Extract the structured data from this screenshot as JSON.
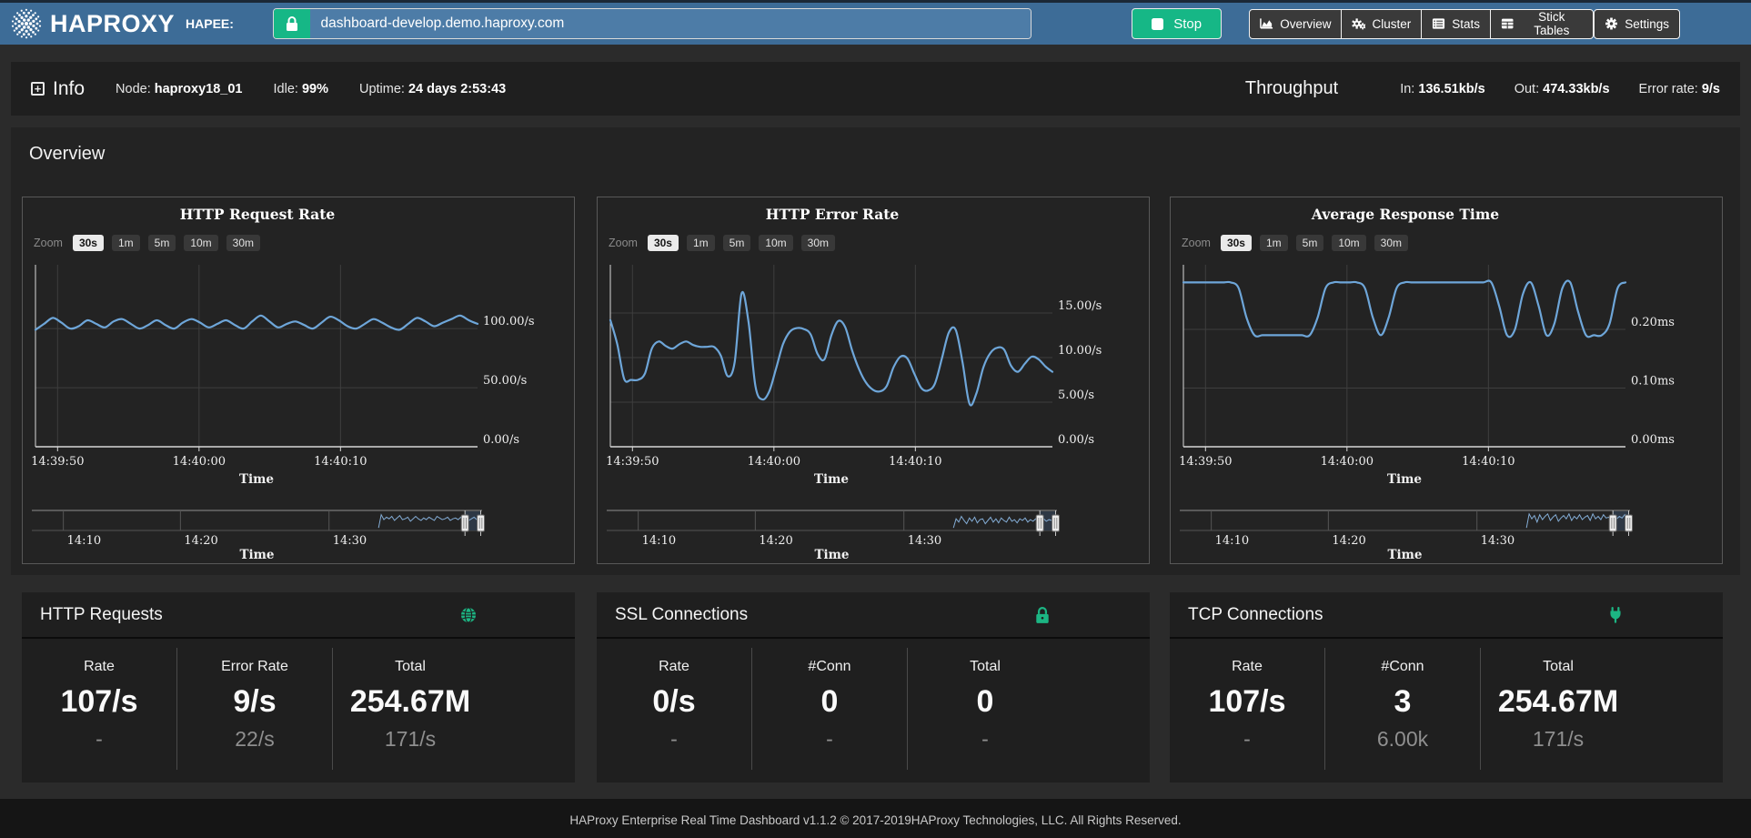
{
  "header": {
    "brand": "HAPROXY",
    "hapee_label": "HAPEE:",
    "url_value": "dashboard-develop.demo.haproxy.com",
    "lock_icon": "lock-icon",
    "stop_label": "Stop",
    "nav": [
      {
        "label": "Overview",
        "icon": "area-chart-icon"
      },
      {
        "label": "Cluster",
        "icon": "gears-icon"
      },
      {
        "label": "Stats",
        "icon": "list-icon"
      },
      {
        "label": "Stick Tables",
        "icon": "table-icon"
      }
    ],
    "settings_label": "Settings",
    "settings_icon": "gear-icon"
  },
  "info_bar": {
    "info_label": "Info",
    "items": [
      {
        "label": "Node:",
        "value": "haproxy18_01"
      },
      {
        "label": "Idle:",
        "value": "99%"
      },
      {
        "label": "Uptime:",
        "value": "24 days 2:53:43"
      }
    ],
    "throughput": {
      "title": "Throughput",
      "items": [
        {
          "label": "In:",
          "value": "136.51kb/s"
        },
        {
          "label": "Out:",
          "value": "474.33kb/s"
        },
        {
          "label": "Error rate:",
          "value": "9/s"
        }
      ]
    }
  },
  "overview": {
    "title": "Overview",
    "zoom_label": "Zoom",
    "zoom_options": [
      "30s",
      "1m",
      "5m",
      "10m",
      "30m"
    ],
    "active_zoom": "30s"
  },
  "chart_data": [
    {
      "type": "line",
      "title": "HTTP Request Rate",
      "xlabel": "Time",
      "line_color": "#6ea6d9",
      "ylim": [
        0,
        154
      ],
      "yticks": [
        {
          "v": 100,
          "label": "100.00/s"
        },
        {
          "v": 50,
          "label": "50.00/s"
        },
        {
          "v": 0,
          "label": "0.00/s"
        }
      ],
      "xticks": [
        {
          "p": 0.05,
          "label": "14:39:50"
        },
        {
          "p": 0.37,
          "label": "14:40:00"
        },
        {
          "p": 0.69,
          "label": "14:40:10"
        }
      ],
      "values": [
        99,
        104,
        109,
        105,
        100,
        102,
        107,
        104,
        101,
        106,
        108,
        104,
        100,
        103,
        107,
        103,
        100,
        105,
        108,
        105,
        101,
        104,
        107,
        103,
        100,
        106,
        111,
        106,
        101,
        104,
        106,
        103,
        100,
        105,
        110,
        107,
        102,
        100,
        104,
        108,
        105,
        101,
        99,
        104,
        109,
        106,
        102,
        105,
        108,
        111,
        107,
        104
      ],
      "range_selector": {
        "xlabel": "Time",
        "xticks": [
          {
            "p": 0.07,
            "label": "14:10"
          },
          {
            "p": 0.33,
            "label": "14:20"
          },
          {
            "p": 0.66,
            "label": "14:30"
          }
        ],
        "data_start": 0.77,
        "window": [
          0.962,
          0.997
        ],
        "values": [
          0.05,
          0.85,
          0.55,
          0.7,
          0.6,
          0.75,
          0.5,
          0.65,
          0.8,
          0.55,
          0.6,
          0.7,
          0.45,
          0.6,
          0.75,
          0.6,
          0.5,
          0.65,
          0.55,
          0.7,
          0.6,
          0.5,
          0.75,
          0.65,
          0.55,
          0.6,
          0.7,
          0.5,
          0.6,
          0.65,
          0.55,
          0.7,
          0.6,
          0.65,
          0.5,
          0.6,
          0.7,
          0.55,
          0.65,
          0.6
        ]
      }
    },
    {
      "type": "line",
      "title": "HTTP Error Rate",
      "xlabel": "Time",
      "line_color": "#6ea6d9",
      "ylim": [
        0,
        20.4
      ],
      "yticks": [
        {
          "v": 15,
          "label": "15.00/s"
        },
        {
          "v": 10,
          "label": "10.00/s"
        },
        {
          "v": 5,
          "label": "5.00/s"
        },
        {
          "v": 0,
          "label": "0.00/s"
        }
      ],
      "xticks": [
        {
          "p": 0.05,
          "label": "14:39:50"
        },
        {
          "p": 0.37,
          "label": "14:40:00"
        },
        {
          "p": 0.69,
          "label": "14:40:10"
        }
      ],
      "values": [
        14.2,
        11.5,
        7.6,
        7.5,
        7.5,
        8.2,
        11.0,
        11.8,
        11.3,
        11.0,
        11.5,
        11.8,
        11.4,
        11.2,
        11.2,
        11.2,
        10.2,
        7.9,
        9.5,
        17.2,
        14.0,
        6.8,
        5.3,
        6.2,
        8.8,
        11.5,
        12.9,
        13.3,
        13.2,
        12.6,
        10.4,
        9.8,
        12.5,
        14.1,
        13.4,
        10.8,
        8.7,
        7.2,
        6.4,
        6.2,
        6.8,
        8.9,
        10.1,
        9.9,
        8.2,
        6.6,
        6.3,
        7.1,
        9.9,
        12.8,
        13.1,
        9.4,
        4.8,
        6.0,
        8.9,
        10.5,
        11.1,
        10.9,
        9.1,
        8.4,
        9.3,
        10.1,
        9.8,
        9.0,
        8.4
      ],
      "range_selector": {
        "xlabel": "Time",
        "xticks": [
          {
            "p": 0.07,
            "label": "14:10"
          },
          {
            "p": 0.33,
            "label": "14:20"
          },
          {
            "p": 0.66,
            "label": "14:30"
          }
        ],
        "data_start": 0.77,
        "window": [
          0.962,
          0.997
        ],
        "values": [
          0.05,
          0.6,
          0.4,
          0.75,
          0.5,
          0.3,
          0.65,
          0.45,
          0.7,
          0.35,
          0.55,
          0.6,
          0.3,
          0.5,
          0.7,
          0.4,
          0.6,
          0.35,
          0.65,
          0.5,
          0.4,
          0.7,
          0.45,
          0.55,
          0.35,
          0.6,
          0.5,
          0.65,
          0.4,
          0.55,
          0.45,
          0.6,
          0.35,
          0.5,
          0.6,
          0.45,
          0.55,
          0.5,
          0.4,
          0.55
        ]
      }
    },
    {
      "type": "line",
      "title": "Average Response Time",
      "xlabel": "Time",
      "line_color": "#6ea6d9",
      "ylim": [
        0,
        0.31
      ],
      "yticks": [
        {
          "v": 0.2,
          "label": "0.20ms"
        },
        {
          "v": 0.1,
          "label": "0.10ms"
        },
        {
          "v": 0,
          "label": "0.00ms"
        }
      ],
      "xticks": [
        {
          "p": 0.05,
          "label": "14:39:50"
        },
        {
          "p": 0.37,
          "label": "14:40:00"
        },
        {
          "p": 0.69,
          "label": "14:40:10"
        }
      ],
      "values": [
        0.28,
        0.28,
        0.28,
        0.28,
        0.28,
        0.28,
        0.28,
        0.27,
        0.22,
        0.19,
        0.19,
        0.19,
        0.19,
        0.19,
        0.19,
        0.19,
        0.19,
        0.22,
        0.27,
        0.28,
        0.28,
        0.28,
        0.28,
        0.27,
        0.22,
        0.19,
        0.22,
        0.27,
        0.28,
        0.28,
        0.28,
        0.28,
        0.28,
        0.28,
        0.28,
        0.28,
        0.28,
        0.28,
        0.28,
        0.28,
        0.24,
        0.19,
        0.2,
        0.26,
        0.28,
        0.24,
        0.19,
        0.21,
        0.27,
        0.28,
        0.23,
        0.19,
        0.19,
        0.19,
        0.21,
        0.27,
        0.28
      ],
      "range_selector": {
        "xlabel": "Time",
        "xticks": [
          {
            "p": 0.07,
            "label": "14:10"
          },
          {
            "p": 0.33,
            "label": "14:20"
          },
          {
            "p": 0.66,
            "label": "14:30"
          }
        ],
        "data_start": 0.77,
        "window": [
          0.962,
          0.997
        ],
        "values": [
          0.05,
          0.9,
          0.6,
          0.8,
          0.4,
          0.85,
          0.55,
          0.75,
          0.9,
          0.5,
          0.7,
          0.85,
          0.45,
          0.65,
          0.8,
          0.6,
          0.9,
          0.5,
          0.75,
          0.6,
          0.85,
          0.55,
          0.7,
          0.8,
          0.5,
          0.9,
          0.6,
          0.75,
          0.55,
          0.85,
          0.65,
          0.7,
          0.5,
          0.8,
          0.6,
          0.75,
          0.65,
          0.85,
          0.55,
          0.7
        ]
      }
    }
  ],
  "cards": [
    {
      "title": "HTTP Requests",
      "icon": "globe-icon",
      "stats": [
        {
          "label": "Rate",
          "value": "107/s",
          "sub": "-"
        },
        {
          "label": "Error Rate",
          "value": "9/s",
          "sub": "22/s"
        },
        {
          "label": "Total",
          "value": "254.67M",
          "sub": "171/s"
        }
      ]
    },
    {
      "title": "SSL Connections",
      "icon": "lock-icon",
      "stats": [
        {
          "label": "Rate",
          "value": "0/s",
          "sub": "-"
        },
        {
          "label": "#Conn",
          "value": "0",
          "sub": "-"
        },
        {
          "label": "Total",
          "value": "0",
          "sub": "-"
        }
      ]
    },
    {
      "title": "TCP Connections",
      "icon": "plug-icon",
      "stats": [
        {
          "label": "Rate",
          "value": "107/s",
          "sub": "-"
        },
        {
          "label": "#Conn",
          "value": "3",
          "sub": "6.00k"
        },
        {
          "label": "Total",
          "value": "254.67M",
          "sub": "171/s"
        }
      ]
    }
  ],
  "footer": {
    "text": "HAProxy Enterprise Real Time Dashboard v1.1.2 © 2017-2019HAProxy Technologies, LLC. All Rights Reserved."
  },
  "colors": {
    "header_blue": "#3d6c97",
    "input_blue": "#4d7ca7",
    "accent_green": "#16b786",
    "card_icon_green": "#1cb583",
    "chart_line_blue": "#6ea6d9"
  }
}
